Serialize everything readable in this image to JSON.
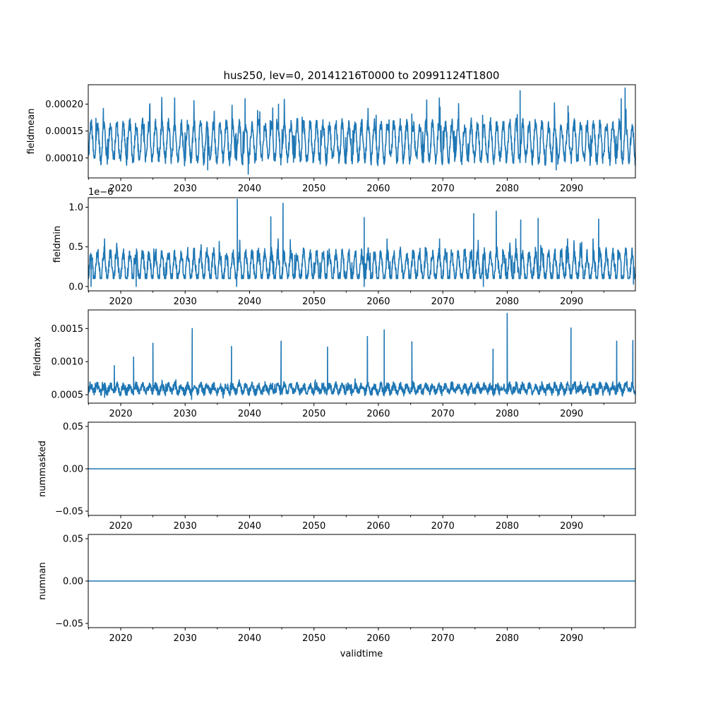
{
  "figure": {
    "title": "hus250, lev=0, 20141216T0000 to 20991124T1800",
    "xlabel": "validtime"
  },
  "chart_data": [
    {
      "type": "line",
      "name": "fieldmean",
      "ylabel": "fieldmean",
      "xlim": [
        2014.96,
        2099.9
      ],
      "ylim": [
        6.3e-05,
        0.000236
      ],
      "xticks": [
        2020,
        2030,
        2040,
        2050,
        2060,
        2070,
        2080,
        2090
      ],
      "xtick_labels": [
        "2020",
        "2030",
        "2040",
        "2050",
        "2060",
        "2070",
        "2080",
        "2090"
      ],
      "yticks": [
        0.0001,
        0.00015,
        0.0002
      ],
      "ytick_labels": [
        "0.00010",
        "0.00015",
        "0.00020"
      ],
      "offset_label": "",
      "color": "#1f77b4",
      "series": {
        "baseline": 0.00013,
        "seasonal_amp": 3.3e-05,
        "noise": 1.2e-05,
        "min": 7.8e-05,
        "max": 0.00023,
        "spikes": [
          [
            2039.3,
            0.00021
          ],
          [
            2082.0,
            0.000225
          ],
          [
            2098.3,
            0.00023
          ],
          [
            2044.5,
            0.0002
          ],
          [
            2097.7,
            0.00021
          ]
        ],
        "dips": [
          [
            2039.8,
            7e-05
          ],
          [
            2033.5,
            7.8e-05
          ],
          [
            2087.6,
            7.8e-05
          ]
        ]
      }
    },
    {
      "type": "line",
      "name": "fieldmin",
      "ylabel": "fieldmin",
      "xlim": [
        2014.96,
        2099.9
      ],
      "ylim": [
        -5.5e-08,
        1.12e-06
      ],
      "xticks": [
        2020,
        2030,
        2040,
        2050,
        2060,
        2070,
        2080,
        2090
      ],
      "xtick_labels": [
        "2020",
        "2030",
        "2040",
        "2050",
        "2060",
        "2070",
        "2080",
        "2090"
      ],
      "yticks": [
        0.0,
        5e-07,
        1e-06
      ],
      "ytick_labels": [
        "0.0",
        "0.5",
        "1.0"
      ],
      "offset_label": "1e−6",
      "color": "#1f77b4",
      "series": {
        "baseline": 2.5e-07,
        "seasonal_amp": 1.7e-07,
        "noise": 8e-08,
        "min": 1e-07,
        "max": 6e-07,
        "spikes": [
          [
            2038.1,
            1.1e-06
          ],
          [
            2045.2,
            1.05e-06
          ],
          [
            2043.3,
            8.8e-07
          ],
          [
            2057.8,
            8.7e-07
          ],
          [
            2074.8,
            9.2e-07
          ],
          [
            2078.3,
            9.5e-07
          ],
          [
            2082.1,
            8.4e-07
          ],
          [
            2084.8,
            8.6e-07
          ],
          [
            2094.2,
            8.5e-07
          ]
        ],
        "dips": [
          [
            2015.4,
            0.0
          ],
          [
            2022.4,
            0.0
          ],
          [
            2038.0,
            0.0
          ],
          [
            2057.8,
            0.0
          ],
          [
            2076.3,
            0.0
          ],
          [
            2099.6,
            3e-08
          ]
        ]
      }
    },
    {
      "type": "line",
      "name": "fieldmax",
      "ylabel": "fieldmax",
      "xlim": [
        2014.96,
        2099.9
      ],
      "ylim": [
        0.000373,
        0.001781
      ],
      "xticks": [
        2020,
        2030,
        2040,
        2050,
        2060,
        2070,
        2080,
        2090
      ],
      "xtick_labels": [
        "2020",
        "2030",
        "2040",
        "2050",
        "2060",
        "2070",
        "2080",
        "2090"
      ],
      "yticks": [
        0.0005,
        0.001,
        0.0015
      ],
      "ytick_labels": [
        "0.0005",
        "0.0010",
        "0.0015"
      ],
      "offset_label": "",
      "color": "#1f77b4",
      "series": {
        "baseline": 0.00059,
        "seasonal_amp": 5e-05,
        "noise": 6e-05,
        "min": 0.00045,
        "max": 0.0009,
        "spikes": [
          [
            2031.1,
            0.0015
          ],
          [
            2080.0,
            0.00173
          ],
          [
            2060.9,
            0.00148
          ],
          [
            2065.2,
            0.0013
          ],
          [
            2058.3,
            0.00138
          ],
          [
            2089.9,
            0.00151
          ],
          [
            2044.9,
            0.00131
          ],
          [
            2025.0,
            0.00128
          ],
          [
            2097.0,
            0.00131
          ],
          [
            2037.2,
            0.00123
          ],
          [
            2052.1,
            0.00122
          ],
          [
            2077.8,
            0.00119
          ],
          [
            2022.0,
            0.00107
          ],
          [
            2019.0,
            0.00094
          ],
          [
            2099.5,
            0.00132
          ]
        ],
        "dips": [
          [
            2031.0,
            0.00043
          ],
          [
            2035.9,
            0.00045
          ],
          [
            2017.5,
            0.00046
          ]
        ]
      }
    },
    {
      "type": "line",
      "name": "nummasked",
      "ylabel": "nummasked",
      "xlim": [
        2014.96,
        2099.9
      ],
      "ylim": [
        -0.055,
        0.055
      ],
      "xticks": [
        2020,
        2030,
        2040,
        2050,
        2060,
        2070,
        2080,
        2090
      ],
      "xtick_labels": [
        "2020",
        "2030",
        "2040",
        "2050",
        "2060",
        "2070",
        "2080",
        "2090"
      ],
      "yticks": [
        -0.05,
        0.0,
        0.05
      ],
      "ytick_labels": [
        "−0.05",
        "0.00",
        "0.05"
      ],
      "offset_label": "",
      "color": "#1f77b4",
      "series": {
        "constant": 0.0
      }
    },
    {
      "type": "line",
      "name": "numnan",
      "ylabel": "numnan",
      "xlim": [
        2014.96,
        2099.9
      ],
      "ylim": [
        -0.055,
        0.055
      ],
      "xticks": [
        2020,
        2030,
        2040,
        2050,
        2060,
        2070,
        2080,
        2090
      ],
      "xtick_labels": [
        "2020",
        "2030",
        "2040",
        "2050",
        "2060",
        "2070",
        "2080",
        "2090"
      ],
      "yticks": [
        -0.05,
        0.0,
        0.05
      ],
      "ytick_labels": [
        "−0.05",
        "0.00",
        "0.05"
      ],
      "offset_label": "",
      "color": "#1f77b4",
      "series": {
        "constant": 0.0
      }
    }
  ]
}
